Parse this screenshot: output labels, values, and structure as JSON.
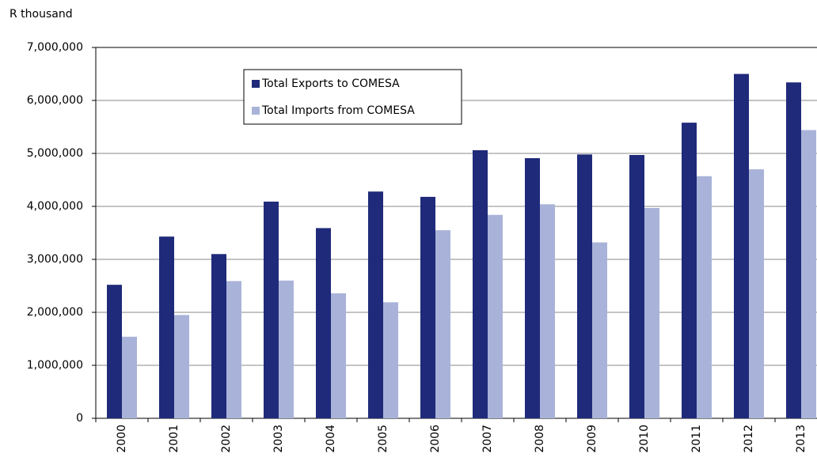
{
  "chart_data": {
    "type": "bar",
    "y_axis_label": "R thousand",
    "categories": [
      "2000",
      "2001",
      "2002",
      "2003",
      "2004",
      "2005",
      "2006",
      "2007",
      "2008",
      "2009",
      "2010",
      "2011",
      "2012",
      "2013"
    ],
    "series": [
      {
        "name": "Total Exports to COMESA",
        "color": "#1f2a7a",
        "values": [
          2520000,
          3430000,
          3100000,
          4090000,
          3590000,
          4280000,
          4180000,
          5060000,
          4910000,
          4980000,
          4970000,
          5580000,
          6500000,
          6340000
        ]
      },
      {
        "name": "Total Imports from COMESA",
        "color": "#a9b3d9",
        "values": [
          1540000,
          1950000,
          2590000,
          2600000,
          2360000,
          2190000,
          3550000,
          3840000,
          4040000,
          3320000,
          3970000,
          4570000,
          4700000,
          5440000
        ]
      }
    ],
    "ylim": [
      0,
      7000000
    ],
    "yticks": [
      0,
      {
        "value": 1000000,
        "label": "1,000,000"
      },
      {
        "value": 2000000,
        "label": "2,000,000"
      },
      {
        "value": 3000000,
        "label": "3,000,000"
      },
      {
        "value": 4000000,
        "label": "4,000,000"
      },
      {
        "value": 5000000,
        "label": "5,000,000"
      },
      {
        "value": 6000000,
        "label": "6,000,000"
      },
      {
        "value": 7000000,
        "label": "7,000,000"
      }
    ],
    "grid": true
  }
}
